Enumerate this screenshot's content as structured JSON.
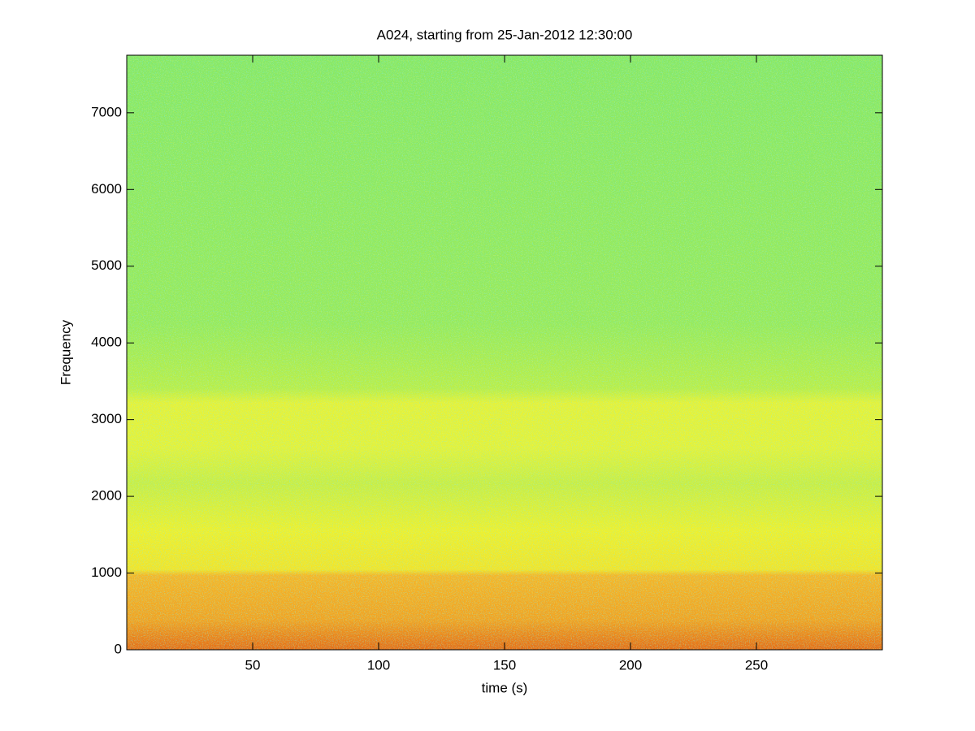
{
  "chart_data": {
    "type": "spectrogram",
    "title": "A024, starting from 25-Jan-2012 12:30:00",
    "x_label": "time (s)",
    "y_label": "Frequency",
    "xlim": [
      0,
      300
    ],
    "ylim": [
      0,
      7750
    ],
    "xticks": [
      50,
      100,
      150,
      200,
      250
    ],
    "yticks": [
      0,
      1000,
      2000,
      3000,
      4000,
      5000,
      6000,
      7000
    ]
  }
}
